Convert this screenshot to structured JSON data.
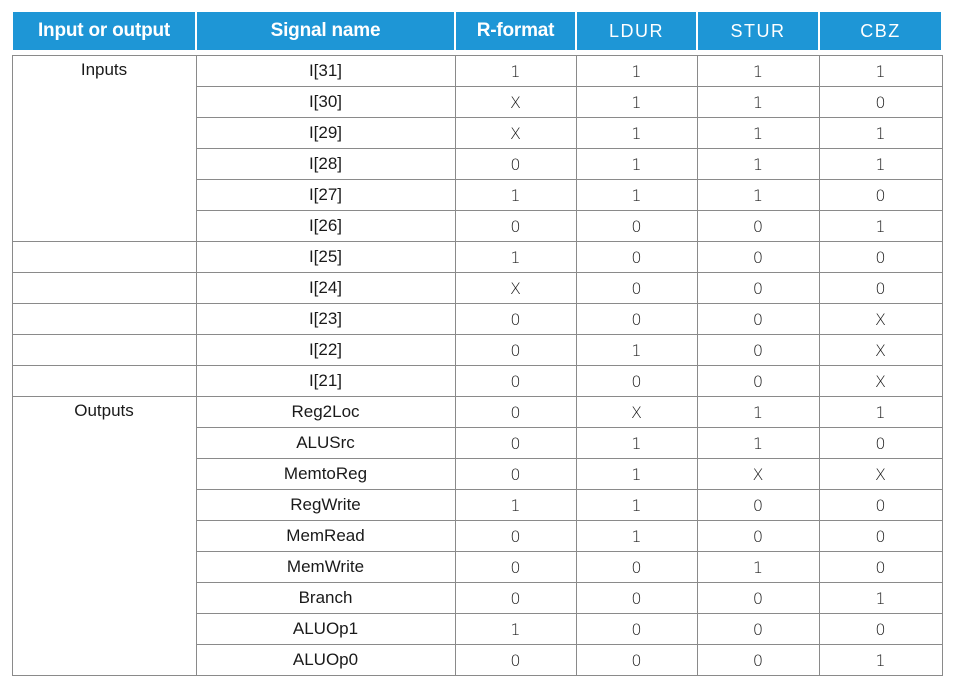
{
  "table": {
    "headers": [
      "Input or output",
      "Signal name",
      "R-format",
      "LDUR",
      "STUR",
      "CBZ"
    ],
    "rows": [
      {
        "group": "Inputs",
        "signal": "I[31]",
        "values": [
          "1",
          "1",
          "1",
          "1"
        ]
      },
      {
        "group": "",
        "signal": "I[30]",
        "values": [
          "X",
          "1",
          "1",
          "0"
        ]
      },
      {
        "group": "",
        "signal": "I[29]",
        "values": [
          "X",
          "1",
          "1",
          "1"
        ]
      },
      {
        "group": "",
        "signal": "I[28]",
        "values": [
          "0",
          "1",
          "1",
          "1"
        ]
      },
      {
        "group": "",
        "signal": "I[27]",
        "values": [
          "1",
          "1",
          "1",
          "0"
        ]
      },
      {
        "group": "",
        "signal": "I[26]",
        "values": [
          "0",
          "0",
          "0",
          "1"
        ]
      },
      {
        "group": "",
        "signal": "I[25]",
        "values": [
          "1",
          "0",
          "0",
          "0"
        ]
      },
      {
        "group": "",
        "signal": "I[24]",
        "values": [
          "X",
          "0",
          "0",
          "0"
        ]
      },
      {
        "group": "",
        "signal": "I[23]",
        "values": [
          "0",
          "0",
          "0",
          "X"
        ]
      },
      {
        "group": "",
        "signal": "I[22]",
        "values": [
          "0",
          "1",
          "0",
          "X"
        ]
      },
      {
        "group": "",
        "signal": "I[21]",
        "values": [
          "0",
          "0",
          "0",
          "X"
        ]
      },
      {
        "group": "Outputs",
        "signal": "Reg2Loc",
        "values": [
          "0",
          "X",
          "1",
          "1"
        ]
      },
      {
        "group": "",
        "signal": "ALUSrc",
        "values": [
          "0",
          "1",
          "1",
          "0"
        ]
      },
      {
        "group": "",
        "signal": "MemtoReg",
        "values": [
          "0",
          "1",
          "X",
          "X"
        ]
      },
      {
        "group": "",
        "signal": "RegWrite",
        "values": [
          "1",
          "1",
          "0",
          "0"
        ]
      },
      {
        "group": "",
        "signal": "MemRead",
        "values": [
          "0",
          "1",
          "0",
          "0"
        ]
      },
      {
        "group": "",
        "signal": "MemWrite",
        "values": [
          "0",
          "0",
          "1",
          "0"
        ]
      },
      {
        "group": "",
        "signal": "Branch",
        "values": [
          "0",
          "0",
          "0",
          "1"
        ]
      },
      {
        "group": "",
        "signal": "ALUOp1",
        "values": [
          "1",
          "0",
          "0",
          "0"
        ]
      },
      {
        "group": "",
        "signal": "ALUOp0",
        "values": [
          "0",
          "0",
          "0",
          "1"
        ]
      }
    ]
  },
  "colors": {
    "header_background": "#1e96d6",
    "header_text": "#ffffff",
    "grid_line": "#8a8a8a"
  }
}
